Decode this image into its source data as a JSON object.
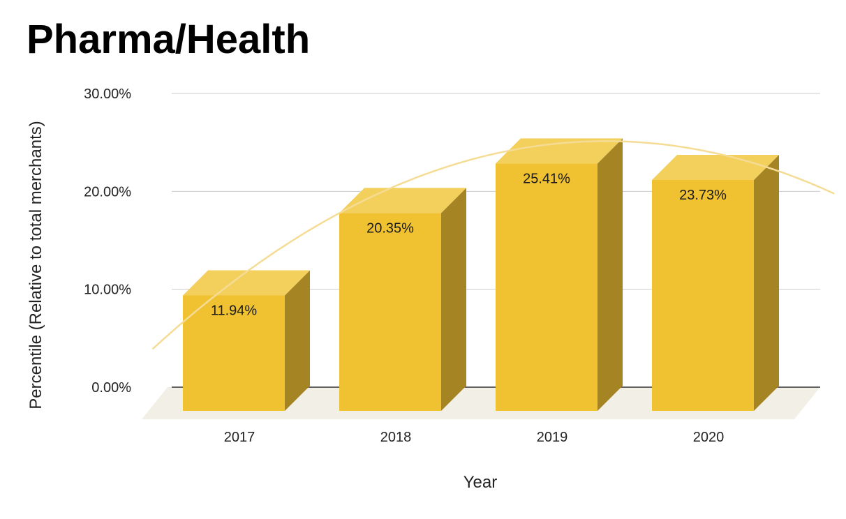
{
  "chart_data": {
    "type": "bar",
    "title": "Pharma/Health",
    "xlabel": "Year",
    "ylabel": "Percentile (Relative to total merchants)",
    "categories": [
      "2017",
      "2018",
      "2019",
      "2020"
    ],
    "values": [
      11.94,
      20.35,
      25.41,
      23.73
    ],
    "data_labels": [
      "11.94%",
      "20.35%",
      "25.41%",
      "23.73%"
    ],
    "yticks": [
      "0.00%",
      "10.00%",
      "20.00%",
      "30.00%"
    ],
    "ylim": [
      0,
      30
    ],
    "grid": true,
    "style_3d": true,
    "trendline": true,
    "colors": {
      "bar_front": "#f0c232",
      "bar_top": "#f3cf5c",
      "bar_side": "#a58423",
      "floor": "#f2efe6",
      "grid": "#cccccc",
      "trendline": "#f5dc95"
    }
  }
}
